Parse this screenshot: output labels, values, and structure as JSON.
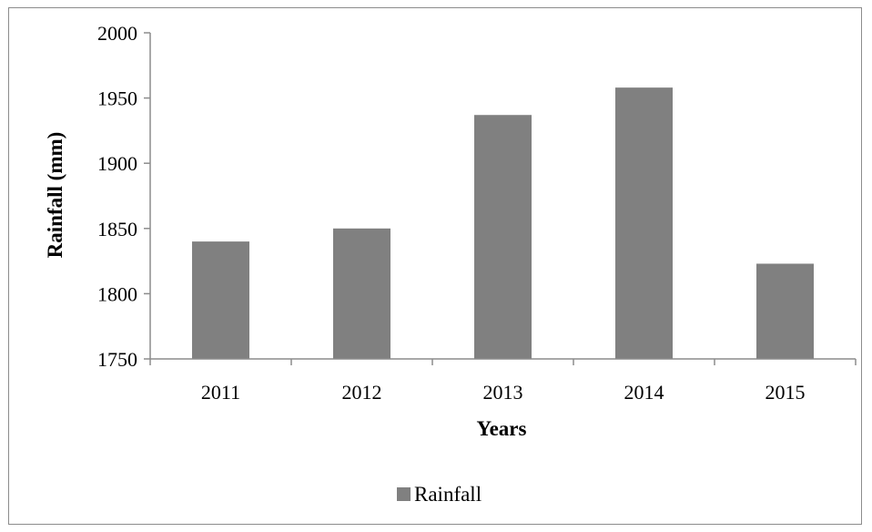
{
  "chart_data": {
    "type": "bar",
    "title": "",
    "xlabel": "Years",
    "ylabel": "Rainfall (mm)",
    "categories": [
      "2011",
      "2012",
      "2013",
      "2014",
      "2015"
    ],
    "series": [
      {
        "name": "Rainfall",
        "values": [
          1840,
          1850,
          1937,
          1958,
          1823
        ],
        "color": "#808080"
      }
    ],
    "ylim": [
      1750,
      2000
    ],
    "yticks": [
      1750,
      1800,
      1850,
      1900,
      1950,
      2000
    ],
    "ytick_labels": [
      "1750",
      "1800",
      "1850",
      "1900",
      "1950",
      "2000"
    ],
    "grid": false,
    "legend": {
      "position": "bottom",
      "entries": [
        "Rainfall"
      ]
    }
  }
}
